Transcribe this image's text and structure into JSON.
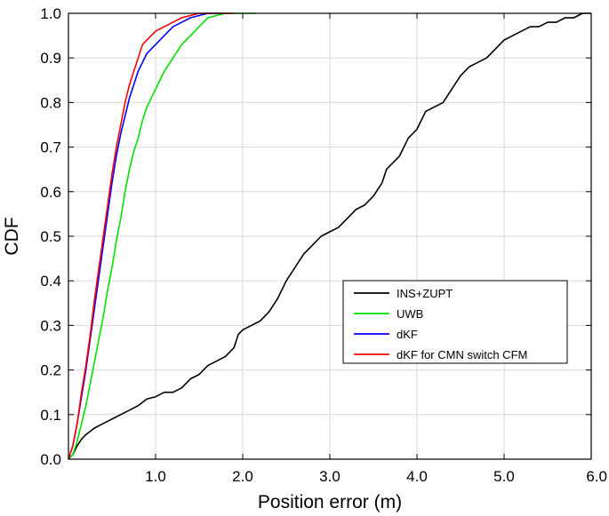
{
  "chart_data": {
    "type": "line",
    "xlabel": "Position error (m)",
    "ylabel": "CDF",
    "xlim": [
      0,
      6
    ],
    "ylim": [
      0,
      1
    ],
    "x_ticks": [
      1,
      2,
      3,
      4,
      5,
      6
    ],
    "x_tick_labels": [
      "1.0",
      "2.0",
      "3.0",
      "4.0",
      "5.0",
      "6.0"
    ],
    "y_ticks": [
      0,
      0.1,
      0.2,
      0.3,
      0.4,
      0.5,
      0.6,
      0.7,
      0.8,
      0.9,
      1.0
    ],
    "y_tick_labels": [
      "0.0",
      "0.1",
      "0.2",
      "0.3",
      "0.4",
      "0.5",
      "0.6",
      "0.7",
      "0.8",
      "0.9",
      "1.0"
    ],
    "grid": true,
    "legend_position": "lower-right",
    "series": [
      {
        "name": "INS+ZUPT",
        "color": "#000000",
        "x": [
          0,
          0.05,
          0.1,
          0.15,
          0.2,
          0.3,
          0.4,
          0.5,
          0.6,
          0.7,
          0.8,
          0.9,
          1.0,
          1.1,
          1.2,
          1.3,
          1.4,
          1.5,
          1.6,
          1.7,
          1.8,
          1.9,
          1.95,
          2.0,
          2.1,
          2.2,
          2.3,
          2.4,
          2.5,
          2.6,
          2.7,
          2.8,
          2.9,
          3.0,
          3.1,
          3.2,
          3.3,
          3.4,
          3.5,
          3.6,
          3.65,
          3.7,
          3.8,
          3.9,
          4.0,
          4.1,
          4.2,
          4.3,
          4.4,
          4.5,
          4.6,
          4.7,
          4.8,
          4.9,
          5.0,
          5.1,
          5.2,
          5.3,
          5.4,
          5.5,
          5.6,
          5.7,
          5.8,
          5.9,
          6.0
        ],
        "values": [
          0,
          0.01,
          0.03,
          0.045,
          0.055,
          0.07,
          0.08,
          0.09,
          0.1,
          0.11,
          0.12,
          0.135,
          0.14,
          0.15,
          0.15,
          0.16,
          0.18,
          0.19,
          0.21,
          0.22,
          0.23,
          0.25,
          0.28,
          0.29,
          0.3,
          0.31,
          0.33,
          0.36,
          0.4,
          0.43,
          0.46,
          0.48,
          0.5,
          0.51,
          0.52,
          0.54,
          0.56,
          0.57,
          0.59,
          0.62,
          0.65,
          0.66,
          0.68,
          0.72,
          0.74,
          0.78,
          0.79,
          0.8,
          0.83,
          0.86,
          0.88,
          0.89,
          0.9,
          0.92,
          0.94,
          0.95,
          0.96,
          0.97,
          0.97,
          0.98,
          0.98,
          0.99,
          0.99,
          1.0,
          1.0
        ]
      },
      {
        "name": "UWB",
        "color": "#00e000",
        "x": [
          0,
          0.05,
          0.1,
          0.15,
          0.2,
          0.25,
          0.3,
          0.35,
          0.4,
          0.45,
          0.5,
          0.55,
          0.6,
          0.65,
          0.7,
          0.75,
          0.8,
          0.85,
          0.9,
          1.0,
          1.1,
          1.2,
          1.3,
          1.4,
          1.5,
          1.6,
          1.7,
          1.8,
          2.0,
          2.15
        ],
        "values": [
          0,
          0.01,
          0.04,
          0.08,
          0.12,
          0.17,
          0.22,
          0.27,
          0.32,
          0.38,
          0.43,
          0.49,
          0.54,
          0.6,
          0.65,
          0.69,
          0.72,
          0.76,
          0.79,
          0.83,
          0.87,
          0.9,
          0.93,
          0.95,
          0.97,
          0.99,
          0.995,
          1.0,
          1.0,
          1.0
        ]
      },
      {
        "name": "dKF",
        "color": "#0000ff",
        "x": [
          0,
          0.05,
          0.1,
          0.15,
          0.2,
          0.25,
          0.3,
          0.35,
          0.4,
          0.45,
          0.5,
          0.55,
          0.6,
          0.65,
          0.7,
          0.75,
          0.8,
          0.9,
          1.0,
          1.1,
          1.2,
          1.3,
          1.4,
          1.5,
          1.6,
          1.7,
          1.75
        ],
        "values": [
          0,
          0.03,
          0.08,
          0.14,
          0.2,
          0.27,
          0.34,
          0.41,
          0.48,
          0.55,
          0.62,
          0.68,
          0.73,
          0.77,
          0.81,
          0.84,
          0.87,
          0.91,
          0.93,
          0.95,
          0.97,
          0.98,
          0.99,
          0.995,
          1.0,
          1.0,
          1.0
        ]
      },
      {
        "name": "dKF for CMN switch CFM",
        "color": "#ff0000",
        "x": [
          0,
          0.05,
          0.1,
          0.15,
          0.2,
          0.25,
          0.3,
          0.35,
          0.4,
          0.45,
          0.5,
          0.55,
          0.6,
          0.65,
          0.7,
          0.75,
          0.8,
          0.85,
          0.9,
          1.0,
          1.1,
          1.2,
          1.3,
          1.4,
          1.5,
          1.6,
          1.7,
          1.9
        ],
        "values": [
          0,
          0.03,
          0.08,
          0.15,
          0.21,
          0.28,
          0.36,
          0.43,
          0.5,
          0.57,
          0.64,
          0.7,
          0.75,
          0.8,
          0.84,
          0.87,
          0.9,
          0.93,
          0.94,
          0.96,
          0.97,
          0.98,
          0.99,
          0.995,
          1.0,
          1.0,
          1.0,
          1.0
        ]
      }
    ]
  }
}
